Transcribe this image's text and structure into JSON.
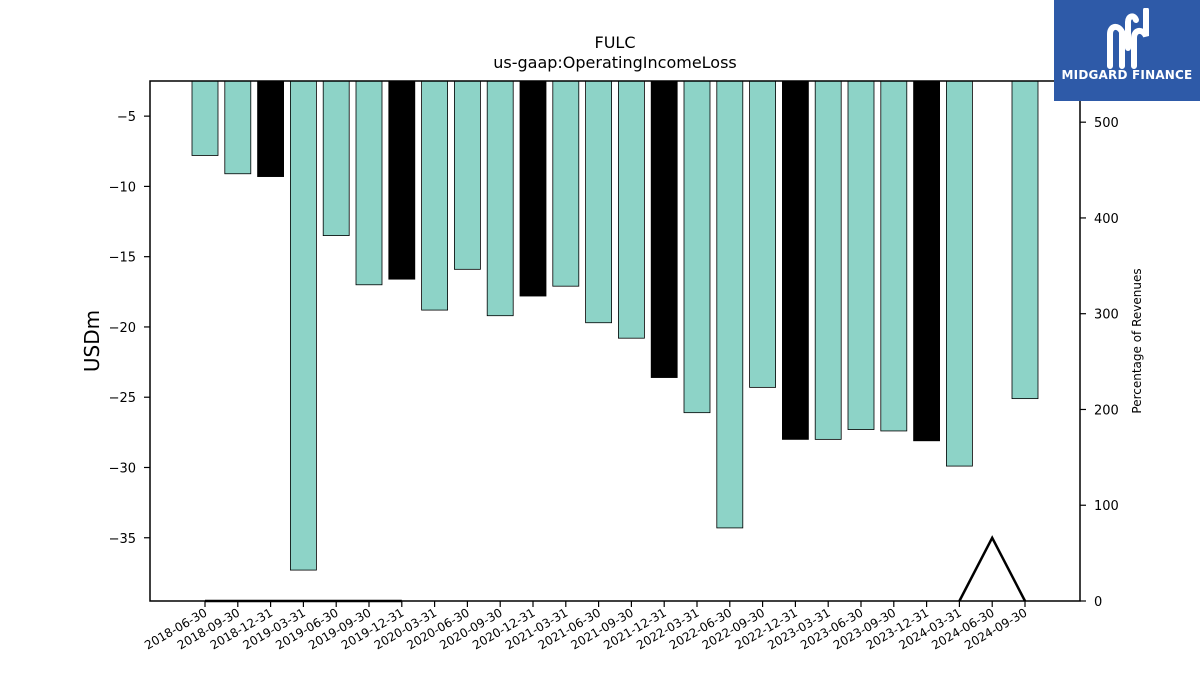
{
  "chart_data": {
    "type": "bar",
    "title": "FULC",
    "subtitle": "us-gaap:OperatingIncomeLoss",
    "ylabel": "USDm",
    "ylabel_right": "Percentage of Revenues",
    "ylim": [
      -39.5,
      -2.5
    ],
    "ylim_right": [
      0,
      543
    ],
    "yticks": [
      -5,
      -10,
      -15,
      -20,
      -25,
      -30,
      -35
    ],
    "yticks_right": [
      0,
      100,
      200,
      300,
      400,
      500
    ],
    "categories": [
      "2018-06-30",
      "2018-09-30",
      "2018-12-31",
      "2019-03-31",
      "2019-06-30",
      "2019-09-30",
      "2019-12-31",
      "2020-03-31",
      "2020-06-30",
      "2020-09-30",
      "2020-12-31",
      "2021-03-31",
      "2021-06-30",
      "2021-09-30",
      "2021-12-31",
      "2022-03-31",
      "2022-06-30",
      "2022-09-30",
      "2022-12-31",
      "2023-03-31",
      "2023-06-30",
      "2023-09-30",
      "2023-12-31",
      "2024-03-31",
      "2024-06-30",
      "2024-09-30"
    ],
    "values": [
      -7.8,
      -9.1,
      -9.3,
      -37.3,
      -13.5,
      -17.0,
      -16.6,
      -18.8,
      -15.9,
      -19.2,
      -17.8,
      -17.1,
      -19.7,
      -20.8,
      -23.6,
      -26.1,
      -34.3,
      -24.3,
      -28.0,
      -28.0,
      -27.3,
      -27.4,
      -28.1,
      -29.9,
      null,
      -25.1
    ],
    "bar_colors": [
      "#8dd3c7",
      "#8dd3c7",
      "#000000",
      "#8dd3c7",
      "#8dd3c7",
      "#8dd3c7",
      "#000000",
      "#8dd3c7",
      "#8dd3c7",
      "#8dd3c7",
      "#000000",
      "#8dd3c7",
      "#8dd3c7",
      "#8dd3c7",
      "#000000",
      "#8dd3c7",
      "#8dd3c7",
      "#8dd3c7",
      "#000000",
      "#8dd3c7",
      "#8dd3c7",
      "#8dd3c7",
      "#000000",
      "#8dd3c7",
      "#8dd3c7",
      "#8dd3c7"
    ],
    "pct_revenue": [
      0,
      0,
      0,
      0,
      0,
      0,
      0,
      null,
      null,
      null,
      null,
      null,
      null,
      null,
      null,
      null,
      null,
      null,
      null,
      null,
      null,
      null,
      null,
      0,
      66,
      0
    ],
    "grid": false
  },
  "logo": {
    "text": "MIDGARD FINANCE",
    "color": "#2e5aa8"
  }
}
